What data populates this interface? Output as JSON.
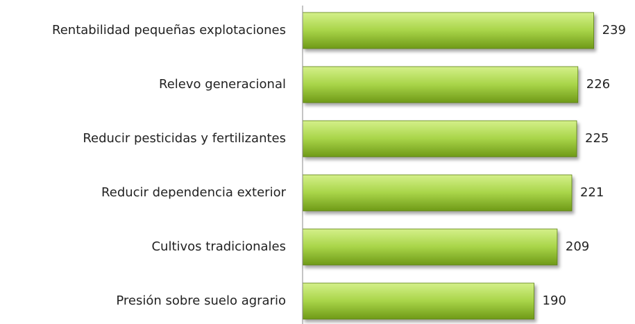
{
  "chart_data": {
    "type": "bar",
    "orientation": "horizontal",
    "categories": [
      "Rentabilidad pequeñas explotaciones",
      "Relevo generacional",
      "Reducir pesticidas y fertilizantes",
      "Reducir dependencia exterior",
      "Cultivos tradicionales",
      "Presión sobre suelo agrario"
    ],
    "values": [
      239,
      226,
      225,
      221,
      209,
      190
    ],
    "color": "#9ccc3a",
    "xlim": [
      0,
      270
    ]
  }
}
